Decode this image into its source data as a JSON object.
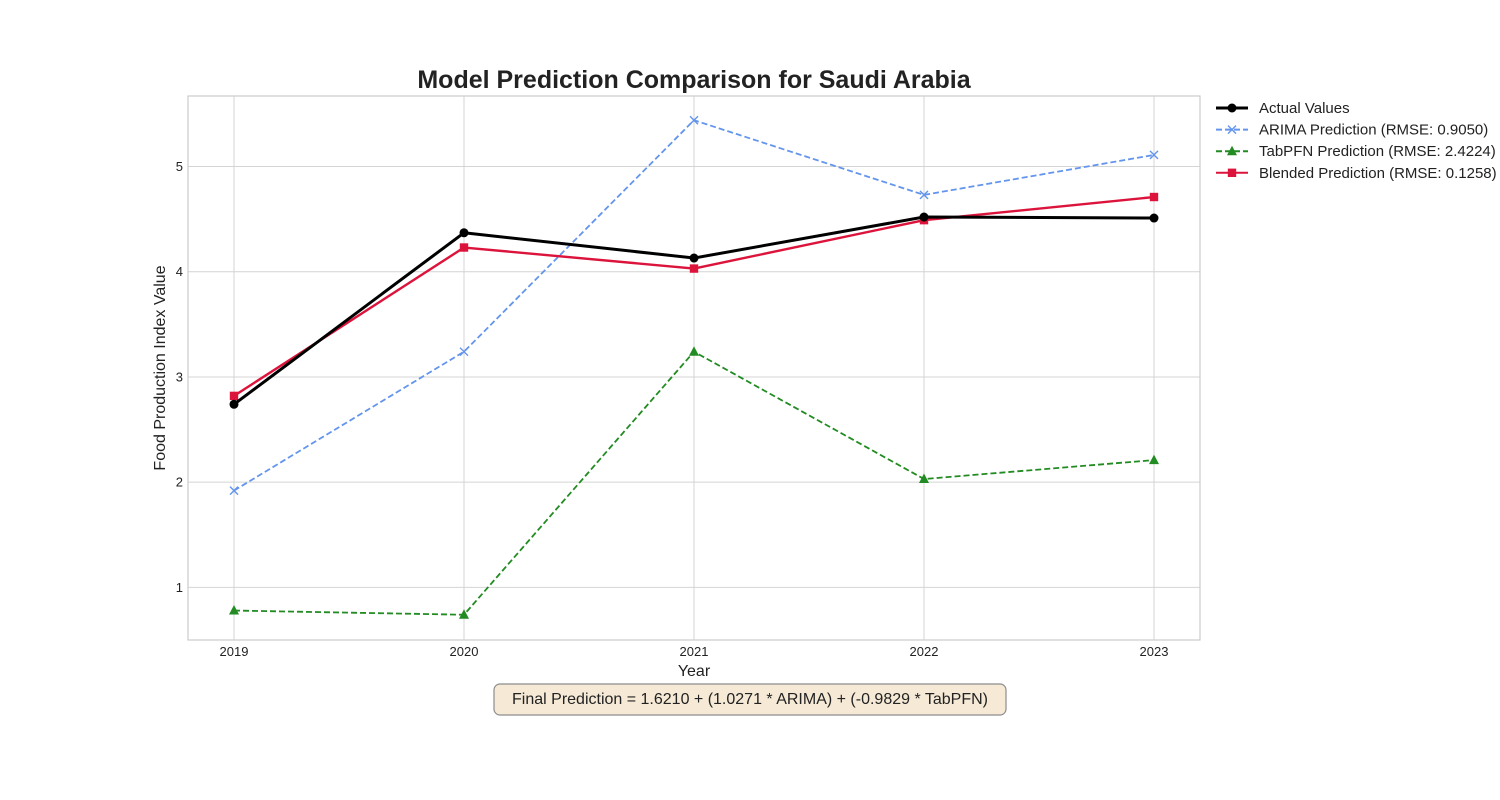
{
  "chart_data": {
    "type": "line",
    "title": "Model Prediction Comparison for Saudi Arabia",
    "xlabel": "Year",
    "ylabel": "Food Production Index Value",
    "x": [
      "2019",
      "2020",
      "2021",
      "2022",
      "2023"
    ],
    "xlim": [
      2018.8,
      2023.2
    ],
    "ylim": [
      0.5,
      5.67
    ],
    "yticks": [
      "1",
      "2",
      "3",
      "4",
      "5"
    ],
    "grid": true,
    "legend_position": "outside-top-right",
    "series": [
      {
        "name": "Actual Values",
        "values": [
          2.74,
          4.37,
          4.13,
          4.52,
          4.51
        ],
        "color": "#000000",
        "style": "solid",
        "marker": "circle"
      },
      {
        "name": "ARIMA Prediction (RMSE: 0.9050)",
        "values": [
          1.92,
          3.24,
          5.44,
          4.73,
          5.11
        ],
        "color": "#6495ed",
        "style": "dashed",
        "marker": "x"
      },
      {
        "name": "TabPFN Prediction (RMSE: 2.4224)",
        "values": [
          0.78,
          0.74,
          3.24,
          2.03,
          2.21
        ],
        "color": "#228b22",
        "style": "dashed",
        "marker": "triangle"
      },
      {
        "name": "Blended Prediction (RMSE: 0.1258)",
        "values": [
          2.82,
          4.23,
          4.03,
          4.49,
          4.71
        ],
        "color": "#dc143c",
        "style": "solid",
        "marker": "square"
      }
    ],
    "annotation": "Final Prediction = 1.6210 + (1.0271 * ARIMA) + (-0.9829 * TabPFN)"
  }
}
